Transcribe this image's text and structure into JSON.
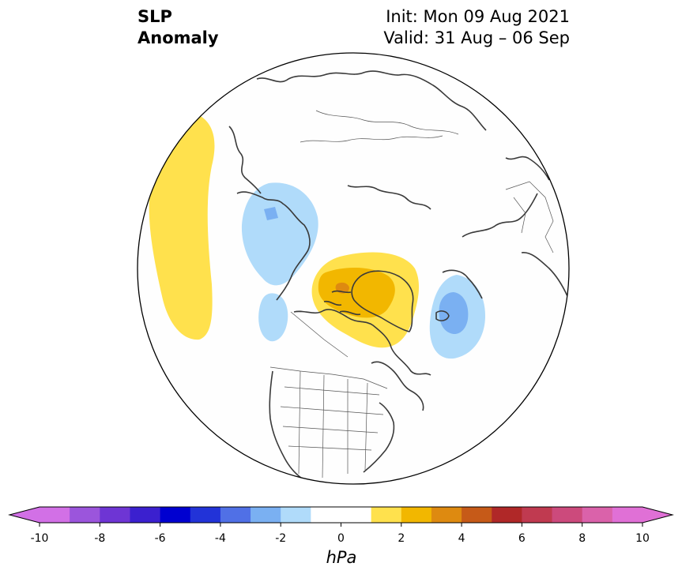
{
  "title": {
    "left_line1": "SLP",
    "left_line2": "Anomaly",
    "right_line1": "Init: Mon 09 Aug 2021",
    "right_line2": "Valid: 31 Aug – 06 Sep"
  },
  "map": {
    "projection": "north-polar-stereographic",
    "region": "North America / Arctic"
  },
  "colorbar": {
    "units": "hPa",
    "tick_labels": [
      "-10",
      "-8",
      "-6",
      "-4",
      "-2",
      "0",
      "2",
      "4",
      "6",
      "8",
      "10"
    ],
    "colors": [
      "#d270e6",
      "#9b55dc",
      "#6e35d4",
      "#3b20cf",
      "#0000d0",
      "#2233d8",
      "#5070e6",
      "#7ab0f2",
      "#b0dbfa",
      "#ffffff",
      "#ffffff",
      "#ffe14d",
      "#f2b700",
      "#de8a10",
      "#c65a18",
      "#b02828",
      "#c03a50",
      "#cc4a7c",
      "#da62aa",
      "#e070d6"
    ],
    "extend_low_color": "#d270e6",
    "extend_high_color": "#e070d6"
  },
  "anomalies": [
    {
      "sign": "positive",
      "level": "1-2 hPa",
      "location": "North Pacific",
      "color": "#ffe14d"
    },
    {
      "sign": "positive",
      "level": "2-3 hPa",
      "location": "Greenland / Canadian Archipelago",
      "color": "#f2b700"
    },
    {
      "sign": "positive",
      "level": "3-4 hPa",
      "location": "Canadian Archipelago",
      "color": "#de8a10"
    },
    {
      "sign": "negative",
      "level": "-1 to -2 hPa",
      "location": "East Siberian Sea",
      "color": "#b0dbfa"
    },
    {
      "sign": "negative",
      "level": "-1 to -2 hPa",
      "location": "Scandinavia / North Atlantic",
      "color": "#b0dbfa"
    },
    {
      "sign": "negative",
      "level": "-2 to -3 hPa",
      "location": "Scandinavia / North Atlantic",
      "color": "#7ab0f2"
    },
    {
      "sign": "negative",
      "level": "-1 to -2 hPa",
      "location": "Gulf of Alaska",
      "color": "#b0dbfa"
    }
  ]
}
